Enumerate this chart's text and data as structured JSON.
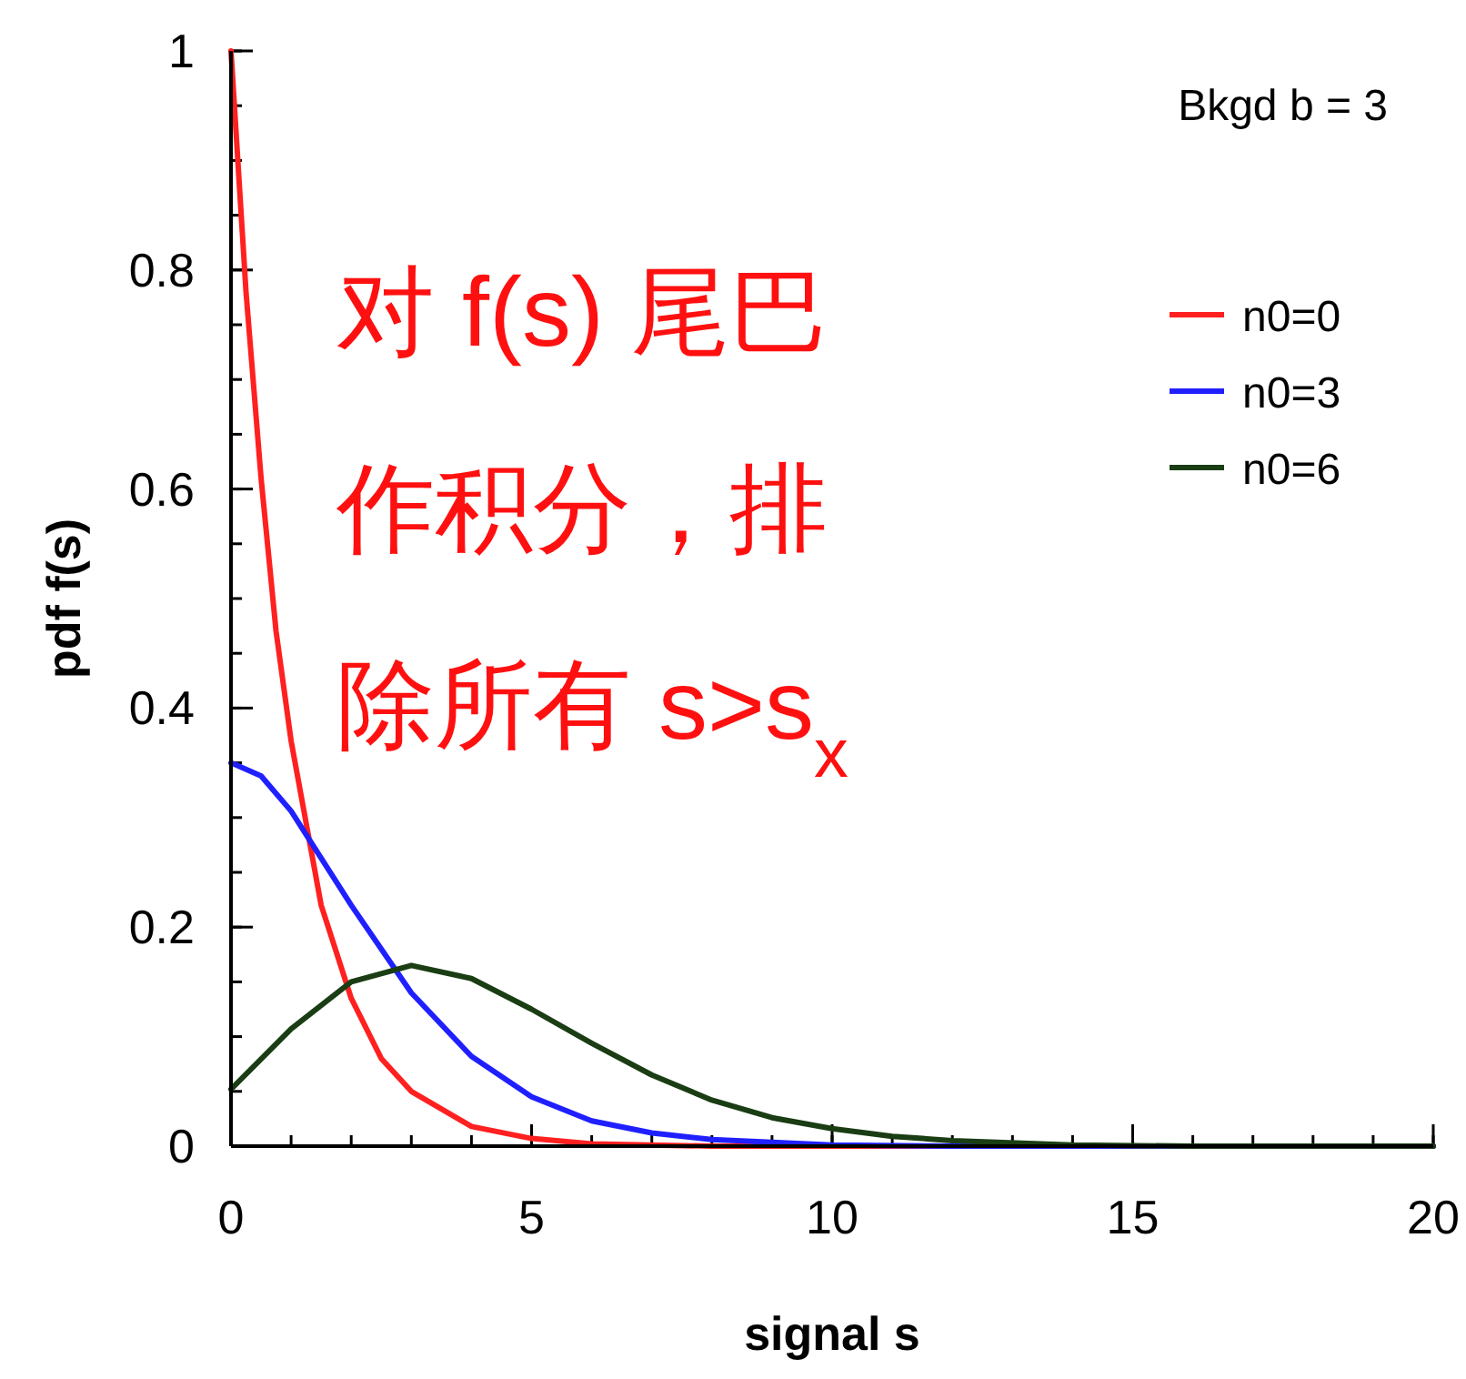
{
  "chart_data": {
    "type": "line",
    "xlabel": "signal s",
    "ylabel": "pdf f(s)",
    "xlim": [
      0,
      20
    ],
    "ylim": [
      0,
      1
    ],
    "xticks": [
      0,
      5,
      10,
      15,
      20
    ],
    "yticks": [
      0,
      0.2,
      0.4,
      0.6,
      0.8,
      1
    ],
    "grid": false,
    "legend": "top right",
    "marker": "none",
    "line_style": "solid",
    "series": [
      {
        "name": "n0=0",
        "color": "#ff2020",
        "x": [
          0,
          0.25,
          0.5,
          0.75,
          1,
          1.5,
          2,
          2.5,
          3,
          4,
          5,
          6,
          8,
          20
        ],
        "values": [
          1,
          0.78,
          0.61,
          0.47,
          0.37,
          0.22,
          0.135,
          0.08,
          0.05,
          0.018,
          0.007,
          0.002,
          0,
          0
        ]
      },
      {
        "name": "n0=3",
        "color": "#2020ff",
        "x": [
          0,
          0.5,
          1,
          2,
          3,
          4,
          5,
          6,
          7,
          8,
          10,
          12,
          20
        ],
        "values": [
          0.35,
          0.338,
          0.306,
          0.22,
          0.14,
          0.082,
          0.045,
          0.023,
          0.012,
          0.006,
          0.001,
          0,
          0
        ]
      },
      {
        "name": "n0=6",
        "color": "#1a3d14",
        "x": [
          0,
          1,
          2,
          3,
          4,
          5,
          6,
          7,
          8,
          9,
          10,
          11,
          12,
          14,
          16,
          20
        ],
        "values": [
          0.052,
          0.107,
          0.15,
          0.165,
          0.153,
          0.125,
          0.094,
          0.065,
          0.042,
          0.026,
          0.016,
          0.009,
          0.005,
          0.001,
          0,
          0
        ]
      }
    ],
    "annotations": [
      "Bkgd b = 3",
      "对 f(s) 尾巴",
      "作积分，排",
      "除所有 s>s$_{x}$"
    ]
  }
}
